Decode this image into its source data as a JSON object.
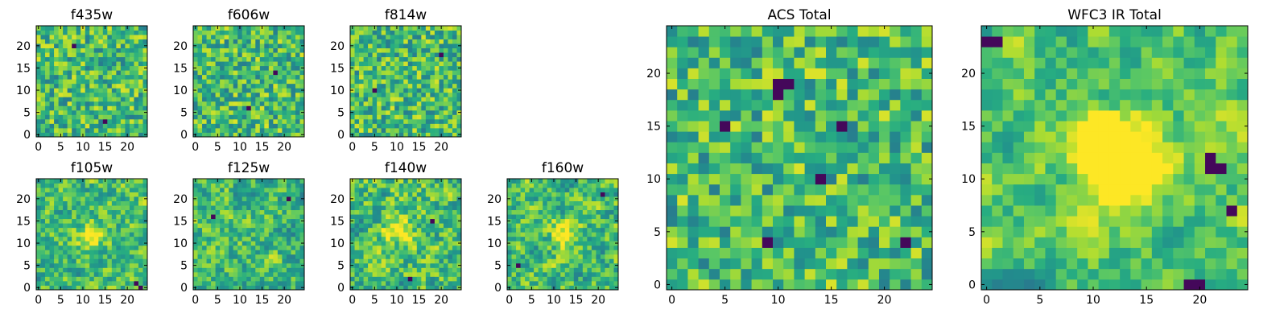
{
  "chart_data": [
    {
      "id": "f435w",
      "type": "heatmap",
      "title": "f435w",
      "grid_size": 25,
      "xlim": [
        -0.5,
        24.5
      ],
      "ylim": [
        -0.5,
        24.5
      ],
      "xticks": [
        0,
        5,
        10,
        15,
        20
      ],
      "xtick_labels": [
        "0",
        "5",
        "10",
        "15",
        "20"
      ],
      "yticks": [
        0,
        5,
        10,
        15,
        20
      ],
      "ytick_labels": [
        "0",
        "5",
        "10",
        "15",
        "20"
      ],
      "colormap": "viridis",
      "pattern": "noise",
      "seed": 11,
      "smoothing": 0,
      "low_spots": [
        [
          8,
          20
        ],
        [
          15,
          3
        ]
      ],
      "high_spots": []
    },
    {
      "id": "f606w",
      "type": "heatmap",
      "title": "f606w",
      "grid_size": 25,
      "xlim": [
        -0.5,
        24.5
      ],
      "ylim": [
        -0.5,
        24.5
      ],
      "xticks": [
        0,
        5,
        10,
        15,
        20
      ],
      "xtick_labels": [
        "0",
        "5",
        "10",
        "15",
        "20"
      ],
      "yticks": [
        0,
        5,
        10,
        15,
        20
      ],
      "ytick_labels": [
        "0",
        "5",
        "10",
        "15",
        "20"
      ],
      "colormap": "viridis",
      "pattern": "noise",
      "seed": 23,
      "smoothing": 0,
      "low_spots": [
        [
          12,
          6
        ],
        [
          18,
          14
        ]
      ],
      "high_spots": []
    },
    {
      "id": "f814w",
      "type": "heatmap",
      "title": "f814w",
      "grid_size": 25,
      "xlim": [
        -0.5,
        24.5
      ],
      "ylim": [
        -0.5,
        24.5
      ],
      "xticks": [
        0,
        5,
        10,
        15,
        20
      ],
      "xtick_labels": [
        "0",
        "5",
        "10",
        "15",
        "20"
      ],
      "yticks": [
        0,
        5,
        10,
        15,
        20
      ],
      "ytick_labels": [
        "0",
        "5",
        "10",
        "15",
        "20"
      ],
      "colormap": "viridis",
      "pattern": "noise",
      "seed": 37,
      "smoothing": 0,
      "low_spots": [
        [
          5,
          10
        ],
        [
          20,
          18
        ]
      ],
      "high_spots": []
    },
    {
      "id": "f105w",
      "type": "heatmap",
      "title": "f105w",
      "grid_size": 25,
      "xlim": [
        -0.5,
        24.5
      ],
      "ylim": [
        -0.5,
        24.5
      ],
      "xticks": [
        0,
        5,
        10,
        15,
        20
      ],
      "xtick_labels": [
        "0",
        "5",
        "10",
        "15",
        "20"
      ],
      "yticks": [
        0,
        5,
        10,
        15,
        20
      ],
      "ytick_labels": [
        "0",
        "5",
        "10",
        "15",
        "20"
      ],
      "colormap": "viridis",
      "pattern": "smooth",
      "seed": 41,
      "smoothing": 1,
      "low_spots": [
        [
          22,
          1
        ],
        [
          23,
          0
        ]
      ],
      "high_spots": [
        [
          12,
          12
        ]
      ]
    },
    {
      "id": "f125w",
      "type": "heatmap",
      "title": "f125w",
      "grid_size": 25,
      "xlim": [
        -0.5,
        24.5
      ],
      "ylim": [
        -0.5,
        24.5
      ],
      "xticks": [
        0,
        5,
        10,
        15,
        20
      ],
      "xtick_labels": [
        "0",
        "5",
        "10",
        "15",
        "20"
      ],
      "yticks": [
        0,
        5,
        10,
        15,
        20
      ],
      "ytick_labels": [
        "0",
        "5",
        "10",
        "15",
        "20"
      ],
      "colormap": "viridis",
      "pattern": "smooth",
      "seed": 53,
      "smoothing": 1,
      "low_spots": [
        [
          4,
          16
        ],
        [
          21,
          20
        ]
      ],
      "high_spots": []
    },
    {
      "id": "f140w",
      "type": "heatmap",
      "title": "f140w",
      "grid_size": 25,
      "xlim": [
        -0.5,
        24.5
      ],
      "ylim": [
        -0.5,
        24.5
      ],
      "xticks": [
        0,
        5,
        10,
        15,
        20
      ],
      "xtick_labels": [
        "0",
        "5",
        "10",
        "15",
        "20"
      ],
      "yticks": [
        0,
        5,
        10,
        15,
        20
      ],
      "ytick_labels": [
        "0",
        "5",
        "10",
        "15",
        "20"
      ],
      "colormap": "viridis",
      "pattern": "smooth",
      "seed": 67,
      "smoothing": 1,
      "low_spots": [
        [
          18,
          15
        ],
        [
          13,
          2
        ]
      ],
      "high_spots": [
        [
          10,
          13
        ]
      ]
    },
    {
      "id": "f160w",
      "type": "heatmap",
      "title": "f160w",
      "grid_size": 25,
      "xlim": [
        -0.5,
        24.5
      ],
      "ylim": [
        -0.5,
        24.5
      ],
      "xticks": [
        0,
        5,
        10,
        15,
        20
      ],
      "xtick_labels": [
        "0",
        "5",
        "10",
        "15",
        "20"
      ],
      "yticks": [
        0,
        5,
        10,
        15,
        20
      ],
      "ytick_labels": [
        "0",
        "5",
        "10",
        "15",
        "20"
      ],
      "colormap": "viridis",
      "pattern": "smooth",
      "seed": 71,
      "smoothing": 1,
      "low_spots": [
        [
          21,
          21
        ],
        [
          2,
          5
        ]
      ],
      "high_spots": [
        [
          13,
          12
        ]
      ]
    },
    {
      "id": "acs-total",
      "type": "heatmap",
      "title": "ACS Total",
      "grid_size": 25,
      "xlim": [
        -0.5,
        24.5
      ],
      "ylim": [
        -0.5,
        24.5
      ],
      "xticks": [
        0,
        5,
        10,
        15,
        20
      ],
      "xtick_labels": [
        "0",
        "5",
        "10",
        "15",
        "20"
      ],
      "yticks": [
        0,
        5,
        10,
        15,
        20
      ],
      "ytick_labels": [
        "0",
        "5",
        "10",
        "15",
        "20"
      ],
      "colormap": "viridis",
      "pattern": "noise",
      "seed": 89,
      "smoothing": 0,
      "low_spots": [
        [
          10,
          19
        ],
        [
          11,
          19
        ],
        [
          10,
          18
        ],
        [
          5,
          15
        ],
        [
          16,
          15
        ],
        [
          14,
          10
        ],
        [
          9,
          4
        ],
        [
          22,
          4
        ]
      ],
      "high_spots": []
    },
    {
      "id": "wfc3-ir-total",
      "type": "heatmap",
      "title": "WFC3 IR Total",
      "grid_size": 25,
      "xlim": [
        -0.5,
        24.5
      ],
      "ylim": [
        -0.5,
        24.5
      ],
      "xticks": [
        0,
        5,
        10,
        15,
        20
      ],
      "xtick_labels": [
        "0",
        "5",
        "10",
        "15",
        "20"
      ],
      "yticks": [
        0,
        5,
        10,
        15,
        20
      ],
      "ytick_labels": [
        "0",
        "5",
        "10",
        "15",
        "20"
      ],
      "colormap": "viridis",
      "pattern": "smooth",
      "seed": 97,
      "smoothing": 2,
      "low_spots": [
        [
          0,
          23
        ],
        [
          1,
          23
        ],
        [
          21,
          11
        ],
        [
          22,
          11
        ],
        [
          21,
          12
        ],
        [
          23,
          7
        ],
        [
          19,
          0
        ],
        [
          20,
          0
        ]
      ],
      "high_spots": [
        [
          12,
          12
        ],
        [
          12,
          13
        ],
        [
          13,
          11
        ]
      ]
    }
  ]
}
